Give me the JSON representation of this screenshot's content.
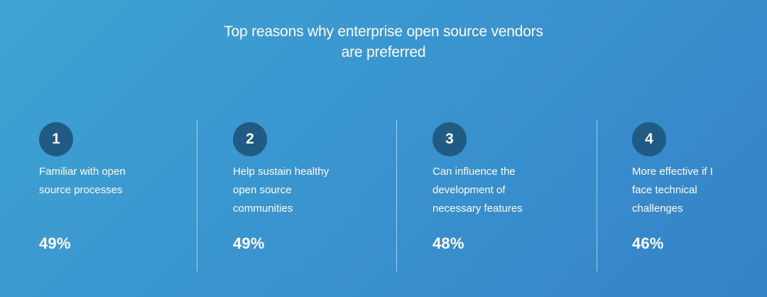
{
  "title": {
    "line1": "Top reasons why enterprise open source vendors",
    "line2": "are preferred"
  },
  "reasons": [
    {
      "number": "1",
      "text": "Familiar with open\nsource processes",
      "percent": "49%"
    },
    {
      "number": "2",
      "text": "Help sustain healthy\nopen source\ncommunities",
      "percent": "49%"
    },
    {
      "number": "3",
      "text": "Can influence the\ndevelopment of\nnecessary features",
      "percent": "48%"
    },
    {
      "number": "4",
      "text": "More effective if I\nface technical\nchallenges",
      "percent": "46%"
    }
  ],
  "colors": {
    "background_start": "#3ea3d2",
    "background_end": "#3582c8",
    "badge": "#1f5b83",
    "text": "#ffffff"
  }
}
